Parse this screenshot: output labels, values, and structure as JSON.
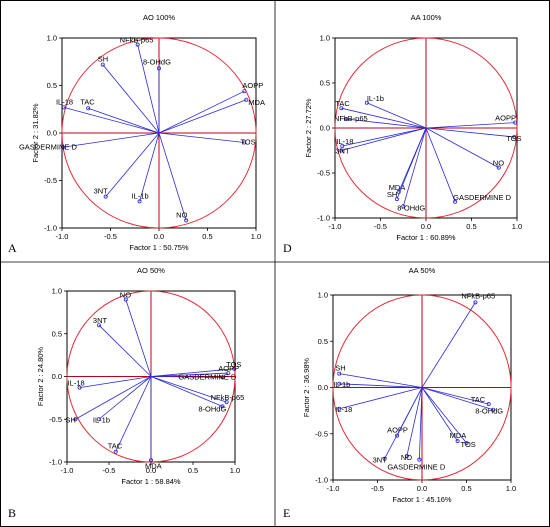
{
  "colors": {
    "vector": "#2b2bd6",
    "circle": "#e0303a",
    "zero_line": "#c0001a",
    "frame": "#000000"
  },
  "chart_data": [
    {
      "type": "scatter",
      "panel": "A",
      "title": "AO 100%",
      "xlabel": "Factor 1 : 50.75%",
      "ylabel": "Factor 2 : 31.82%",
      "xlim": [
        -1.0,
        1.0
      ],
      "ylim": [
        -1.0,
        1.0
      ],
      "xticks": [
        "-1.0",
        "-0.5",
        "0.0",
        "0.5",
        "1.0"
      ],
      "yticks": [
        "1.0",
        "0.5",
        "0.0",
        "-0.5",
        "-1.0"
      ],
      "points": [
        {
          "label": "NFkB-p65",
          "x": -0.22,
          "y": 0.93
        },
        {
          "label": "8-OHdG",
          "x": 0.0,
          "y": 0.68
        },
        {
          "label": "SH",
          "x": -0.58,
          "y": 0.72
        },
        {
          "label": "AOPP",
          "x": 0.88,
          "y": 0.44
        },
        {
          "label": "MDA",
          "x": 0.9,
          "y": 0.35
        },
        {
          "label": "IL-18",
          "x": -0.98,
          "y": 0.27
        },
        {
          "label": "TAC",
          "x": -0.73,
          "y": 0.26
        },
        {
          "label": "GASDERMINE D",
          "x": -0.99,
          "y": -0.15
        },
        {
          "label": "TOS",
          "x": 0.88,
          "y": -0.1
        },
        {
          "label": "IL-1b",
          "x": -0.2,
          "y": -0.72
        },
        {
          "label": "3NT",
          "x": -0.55,
          "y": -0.67
        },
        {
          "label": "NO",
          "x": 0.28,
          "y": -0.92
        }
      ]
    },
    {
      "type": "scatter",
      "panel": "D",
      "title": "AA 100%",
      "xlabel": "Factor 1 : 60.89%",
      "ylabel": "Factor 2 : 27.72%",
      "xlim": [
        -1.0,
        1.0
      ],
      "ylim": [
        -1.0,
        1.0
      ],
      "xticks": [
        "-1.0",
        "-0.5",
        "0.0",
        "0.5",
        "1.0"
      ],
      "yticks": [
        "1.0",
        "0.5",
        "0.0",
        "-0.5",
        "-1.0"
      ],
      "points": [
        {
          "label": "IL-1b",
          "x": -0.65,
          "y": 0.28
        },
        {
          "label": "TAC",
          "x": -0.93,
          "y": 0.22
        },
        {
          "label": "NFkB-p65",
          "x": -0.88,
          "y": 0.1
        },
        {
          "label": "AOPP",
          "x": 0.98,
          "y": 0.06
        },
        {
          "label": "TOS",
          "x": 0.97,
          "y": -0.1
        },
        {
          "label": "IL-18",
          "x": -0.92,
          "y": -0.2
        },
        {
          "label": "3NT",
          "x": -0.93,
          "y": -0.25
        },
        {
          "label": "NO",
          "x": 0.8,
          "y": -0.44
        },
        {
          "label": "MDA",
          "x": -0.3,
          "y": -0.71
        },
        {
          "label": "SH",
          "x": -0.32,
          "y": -0.79
        },
        {
          "label": "8-OHdG",
          "x": -0.25,
          "y": -0.87
        },
        {
          "label": "GASDERMINE D",
          "x": 0.32,
          "y": -0.82
        }
      ]
    },
    {
      "type": "scatter",
      "panel": "B",
      "title": "AO 50%",
      "xlabel": "Factor 1 : 58.84%",
      "ylabel": "Factor 2 : 24.80%",
      "xlim": [
        -1.0,
        1.0
      ],
      "ylim": [
        -1.0,
        1.0
      ],
      "xticks": [
        "-1.0",
        "-0.5",
        "0.0",
        "0.5",
        "1.0"
      ],
      "yticks": [
        "1.0",
        "0.5",
        "0.0",
        "-0.5",
        "-1.0"
      ],
      "points": [
        {
          "label": "NO",
          "x": -0.3,
          "y": 0.9
        },
        {
          "label": "3NT",
          "x": -0.62,
          "y": 0.6
        },
        {
          "label": "TOS",
          "x": 0.99,
          "y": 0.09
        },
        {
          "label": "AOPP",
          "x": 0.92,
          "y": 0.04
        },
        {
          "label": "GASDERMINE D",
          "x": 0.85,
          "y": -0.01
        },
        {
          "label": "NFkB-p65",
          "x": 0.9,
          "y": -0.3
        },
        {
          "label": "8-OHdG",
          "x": 0.85,
          "y": -0.35
        },
        {
          "label": "IL-18",
          "x": -0.85,
          "y": -0.13
        },
        {
          "label": "SH",
          "x": -0.9,
          "y": -0.5
        },
        {
          "label": "IL-1b",
          "x": -0.62,
          "y": -0.5
        },
        {
          "label": "TAC",
          "x": -0.42,
          "y": -0.88
        },
        {
          "label": "MDA",
          "x": 0.0,
          "y": -0.98
        }
      ]
    },
    {
      "type": "scatter",
      "panel": "E",
      "title": "AA 50%",
      "xlabel": "Factor 1 : 45.16%",
      "ylabel": "Factor 2 : 36.98%",
      "xlim": [
        -1.0,
        1.0
      ],
      "ylim": [
        -1.0,
        1.0
      ],
      "xticks": [
        "-1.0",
        "-0.5",
        "0.0",
        "0.5",
        "1.0"
      ],
      "yticks": [
        "1.0",
        "0.5",
        "0.0",
        "-0.5",
        "-1.0"
      ],
      "points": [
        {
          "label": "NFkB-p65",
          "x": 0.6,
          "y": 0.92
        },
        {
          "label": "SH",
          "x": -0.93,
          "y": 0.15
        },
        {
          "label": "IL-1b",
          "x": -0.93,
          "y": 0.04
        },
        {
          "label": "IL-18",
          "x": -0.93,
          "y": -0.23
        },
        {
          "label": "TAC",
          "x": 0.75,
          "y": -0.18
        },
        {
          "label": "8-OHdG",
          "x": 0.8,
          "y": -0.24
        },
        {
          "label": "AOPP",
          "x": -0.28,
          "y": -0.52
        },
        {
          "label": "MDA",
          "x": 0.4,
          "y": -0.58
        },
        {
          "label": "TOS",
          "x": 0.5,
          "y": -0.6
        },
        {
          "label": "3NT",
          "x": -0.42,
          "y": -0.77
        },
        {
          "label": "NO",
          "x": -0.17,
          "y": -0.74
        },
        {
          "label": "GASDERMINE D",
          "x": -0.03,
          "y": -0.78
        }
      ]
    }
  ]
}
